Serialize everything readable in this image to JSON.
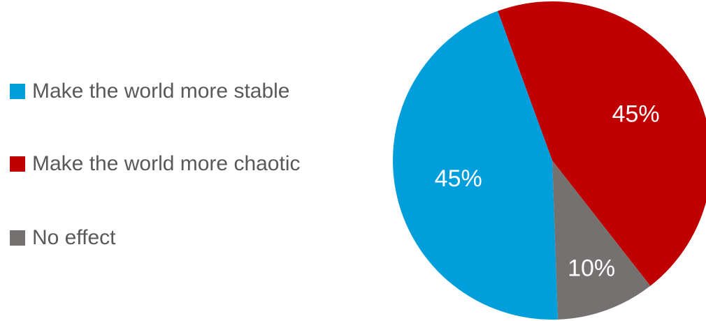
{
  "chart_data": {
    "type": "pie",
    "title": "",
    "start_angle_deg": -20,
    "direction": "clockwise",
    "slices": [
      {
        "name": "Make the world more chaotic",
        "value": 45,
        "label": "45%",
        "color": "#C00000"
      },
      {
        "name": "No effect",
        "value": 10,
        "label": "10%",
        "color": "#767171"
      },
      {
        "name": "Make the world more stable",
        "value": 45,
        "label": "45%",
        "color": "#009FDB"
      }
    ],
    "legend": {
      "position": "left",
      "entries": [
        {
          "name": "Make the world more stable",
          "color": "#009FDB"
        },
        {
          "name": "Make the world more chaotic",
          "color": "#C00000"
        },
        {
          "name": "No effect",
          "color": "#767171"
        }
      ]
    }
  }
}
